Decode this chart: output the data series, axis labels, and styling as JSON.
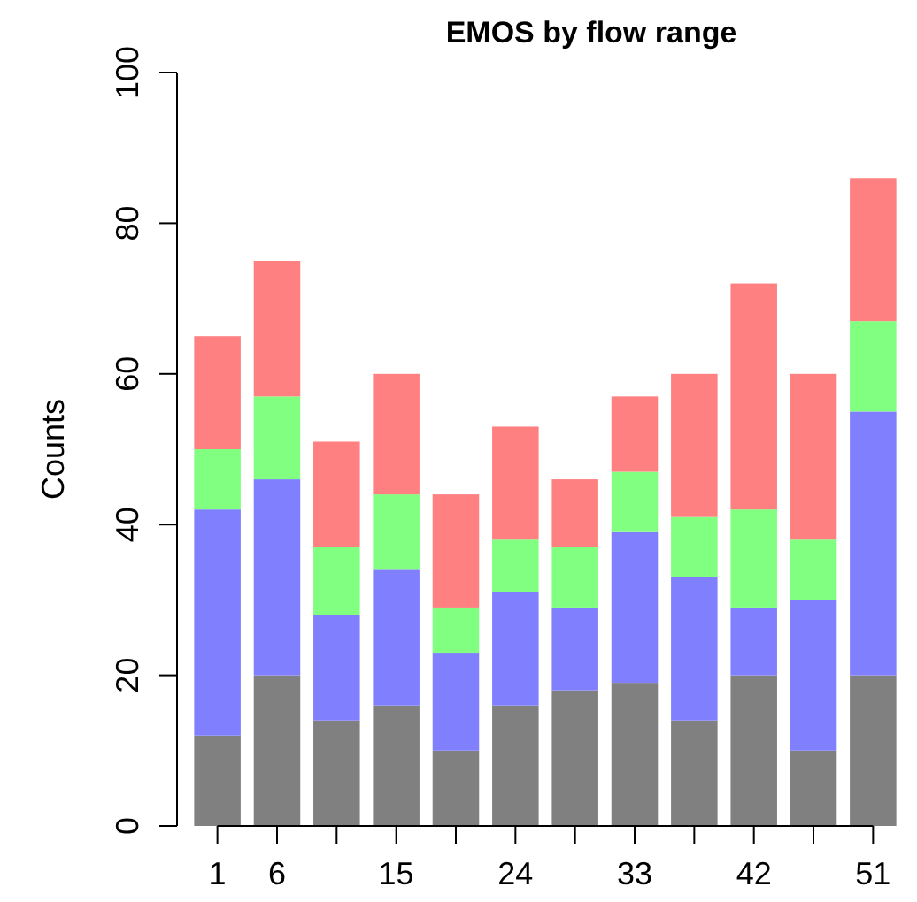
{
  "chart_data": {
    "type": "bar",
    "title": "EMOS by flow range",
    "ylabel": "Counts",
    "stacked": true,
    "categories": [
      "1",
      "6",
      null,
      "15",
      null,
      "24",
      null,
      "33",
      null,
      "42",
      null,
      "51"
    ],
    "series": [
      {
        "color": "#808080",
        "values": [
          12,
          20,
          14,
          16,
          10,
          16,
          18,
          19,
          14,
          20,
          10,
          20
        ]
      },
      {
        "color": "#8080ff",
        "values": [
          30,
          26,
          14,
          18,
          13,
          15,
          11,
          20,
          19,
          9,
          20,
          35
        ]
      },
      {
        "color": "#80ff80",
        "values": [
          8,
          11,
          9,
          10,
          6,
          7,
          8,
          8,
          8,
          13,
          8,
          12
        ]
      },
      {
        "color": "#ff8080",
        "values": [
          15,
          18,
          14,
          16,
          15,
          15,
          9,
          10,
          19,
          30,
          22,
          19
        ]
      }
    ],
    "ylim": [
      0,
      100
    ],
    "yticks": [
      0,
      20,
      40,
      60,
      80,
      100
    ],
    "grid": false
  }
}
